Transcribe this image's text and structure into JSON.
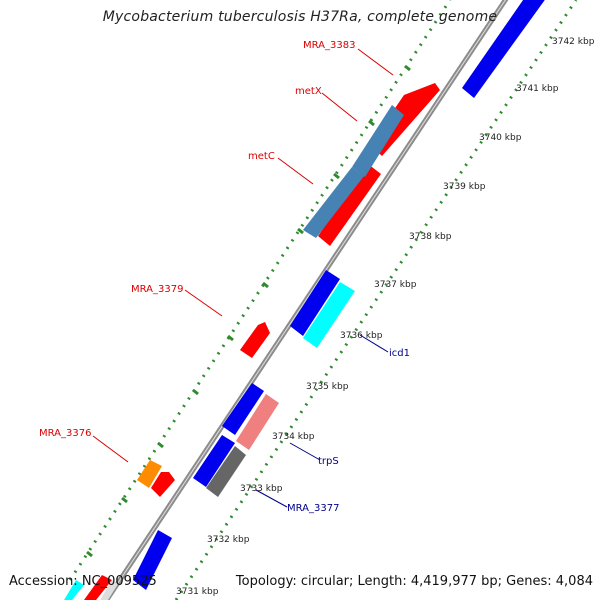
{
  "title": "Mycobacterium tuberculosis H37Ra, complete genome",
  "accession": "Accession: NC_009525",
  "topology": "Topology: circular; Length: 4,419,977 bp; Genes: 4,084",
  "colors": {
    "backbone": "#8c8c8c",
    "tick_dots": "#2e8b2e",
    "red_gene": "#ff0000",
    "blue_gene": "#0000ee",
    "cyan_gene": "#00ffff",
    "steelblue_gene": "#4682b4",
    "pink_gene": "#f08080",
    "gray_gene": "#666666",
    "orange_gene": "#ff8c00",
    "label_red": "#dd0000",
    "label_blue": "#00008b"
  },
  "ticks": [
    {
      "label": "3731 kbp"
    },
    {
      "label": "3732 kbp"
    },
    {
      "label": "3733 kbp"
    },
    {
      "label": "3734 kbp"
    },
    {
      "label": "3735 kbp"
    },
    {
      "label": "3736 kbp"
    },
    {
      "label": "3737 kbp"
    },
    {
      "label": "3738 kbp"
    },
    {
      "label": "3739 kbp"
    },
    {
      "label": "3740 kbp"
    },
    {
      "label": "3741 kbp"
    },
    {
      "label": "3742 kbp"
    }
  ],
  "gene_labels": [
    {
      "text": "MRA_3383",
      "color": "red"
    },
    {
      "text": "metX",
      "color": "red"
    },
    {
      "text": "metC",
      "color": "red"
    },
    {
      "text": "MRA_3379",
      "color": "red"
    },
    {
      "text": "MRA_3376",
      "color": "red"
    },
    {
      "text": "icd1",
      "color": "blue"
    },
    {
      "text": "trpS",
      "color": "blue"
    },
    {
      "text": "MRA_3377",
      "color": "blue"
    }
  ]
}
